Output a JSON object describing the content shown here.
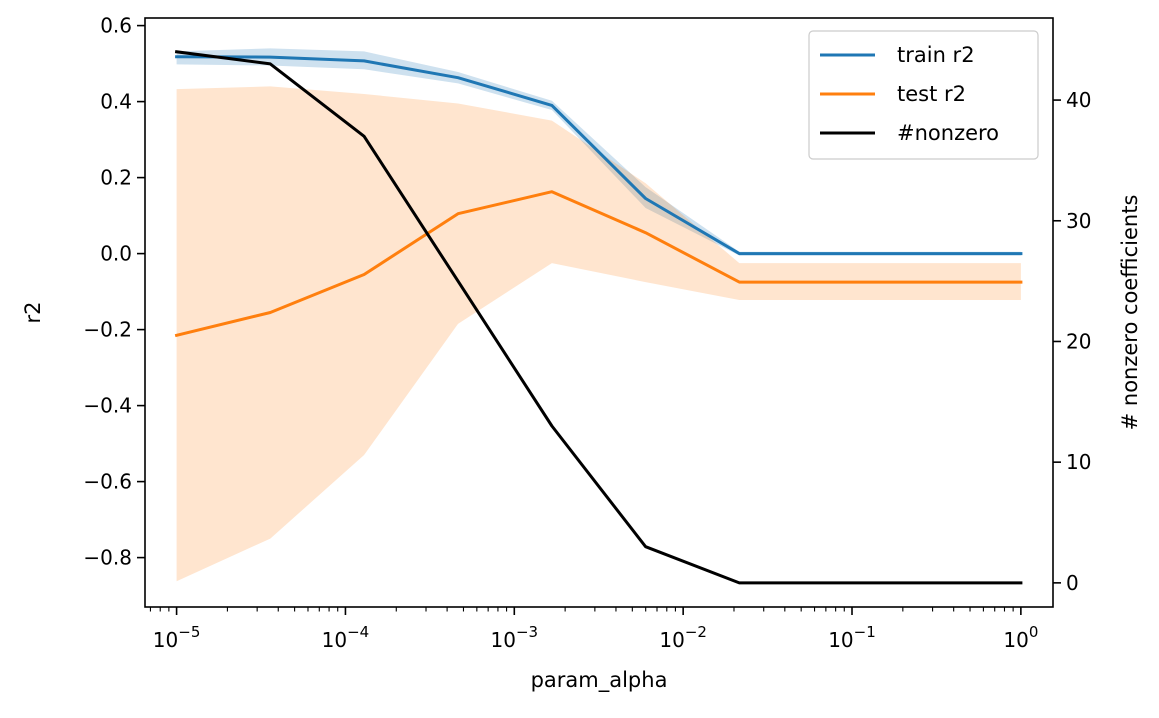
{
  "chart_data": {
    "type": "line",
    "xlabel": "param_alpha",
    "ylabel": "r2",
    "y2label": "# nonzero coefficients",
    "xscale": "log",
    "xlim": [
      6.5e-06,
      1.55
    ],
    "ylim": [
      -0.93,
      0.62
    ],
    "y2lim": [
      -2.0,
      46.8
    ],
    "x": [
      1e-05,
      3.59e-05,
      0.000129,
      0.000464,
      0.00167,
      0.00599,
      0.0215,
      1.0
    ],
    "xticks": [
      {
        "value": 1e-05,
        "base": "10",
        "exp": "−5"
      },
      {
        "value": 0.0001,
        "base": "10",
        "exp": "−4"
      },
      {
        "value": 0.001,
        "base": "10",
        "exp": "−3"
      },
      {
        "value": 0.01,
        "base": "10",
        "exp": "−2"
      },
      {
        "value": 0.1,
        "base": "10",
        "exp": "−1"
      },
      {
        "value": 1,
        "base": "10",
        "exp": "0"
      }
    ],
    "yticks": [
      {
        "value": 0.6,
        "label": "0.6"
      },
      {
        "value": 0.4,
        "label": "0.4"
      },
      {
        "value": 0.2,
        "label": "0.2"
      },
      {
        "value": 0.0,
        "label": "0.0"
      },
      {
        "value": -0.2,
        "label": "−0.2"
      },
      {
        "value": -0.4,
        "label": "−0.4"
      },
      {
        "value": -0.6,
        "label": "−0.6"
      },
      {
        "value": -0.8,
        "label": "−0.8"
      }
    ],
    "y2ticks": [
      {
        "value": 0,
        "label": "0"
      },
      {
        "value": 10,
        "label": "10"
      },
      {
        "value": 20,
        "label": "20"
      },
      {
        "value": 30,
        "label": "30"
      },
      {
        "value": 40,
        "label": "40"
      }
    ],
    "series": [
      {
        "name": "train r2",
        "axis": "left",
        "color": "#1f77b4",
        "band_color": "#1f77b4",
        "band_opacity": 0.22,
        "values": [
          0.518,
          0.517,
          0.507,
          0.463,
          0.39,
          0.145,
          0.0,
          0.0
        ],
        "band_low": [
          0.498,
          0.495,
          0.485,
          0.448,
          0.378,
          0.12,
          -0.005,
          -0.005
        ],
        "band_high": [
          0.532,
          0.54,
          0.532,
          0.478,
          0.402,
          0.175,
          0.005,
          0.005
        ]
      },
      {
        "name": "test r2",
        "axis": "left",
        "color": "#ff7f0e",
        "band_color": "#ff7f0e",
        "band_opacity": 0.2,
        "values": [
          -0.215,
          -0.155,
          -0.055,
          0.105,
          0.163,
          0.055,
          -0.075,
          -0.075
        ],
        "band_low": [
          -0.862,
          -0.75,
          -0.53,
          -0.185,
          -0.025,
          -0.075,
          -0.122,
          -0.122
        ],
        "band_high": [
          0.433,
          0.44,
          0.42,
          0.395,
          0.35,
          0.185,
          -0.025,
          -0.025
        ]
      },
      {
        "name": "#nonzero",
        "axis": "right",
        "color": "#000000",
        "values": [
          44,
          43,
          37,
          25,
          13,
          3,
          0,
          0
        ]
      }
    ],
    "legend_position": "top-right",
    "grid": false
  }
}
